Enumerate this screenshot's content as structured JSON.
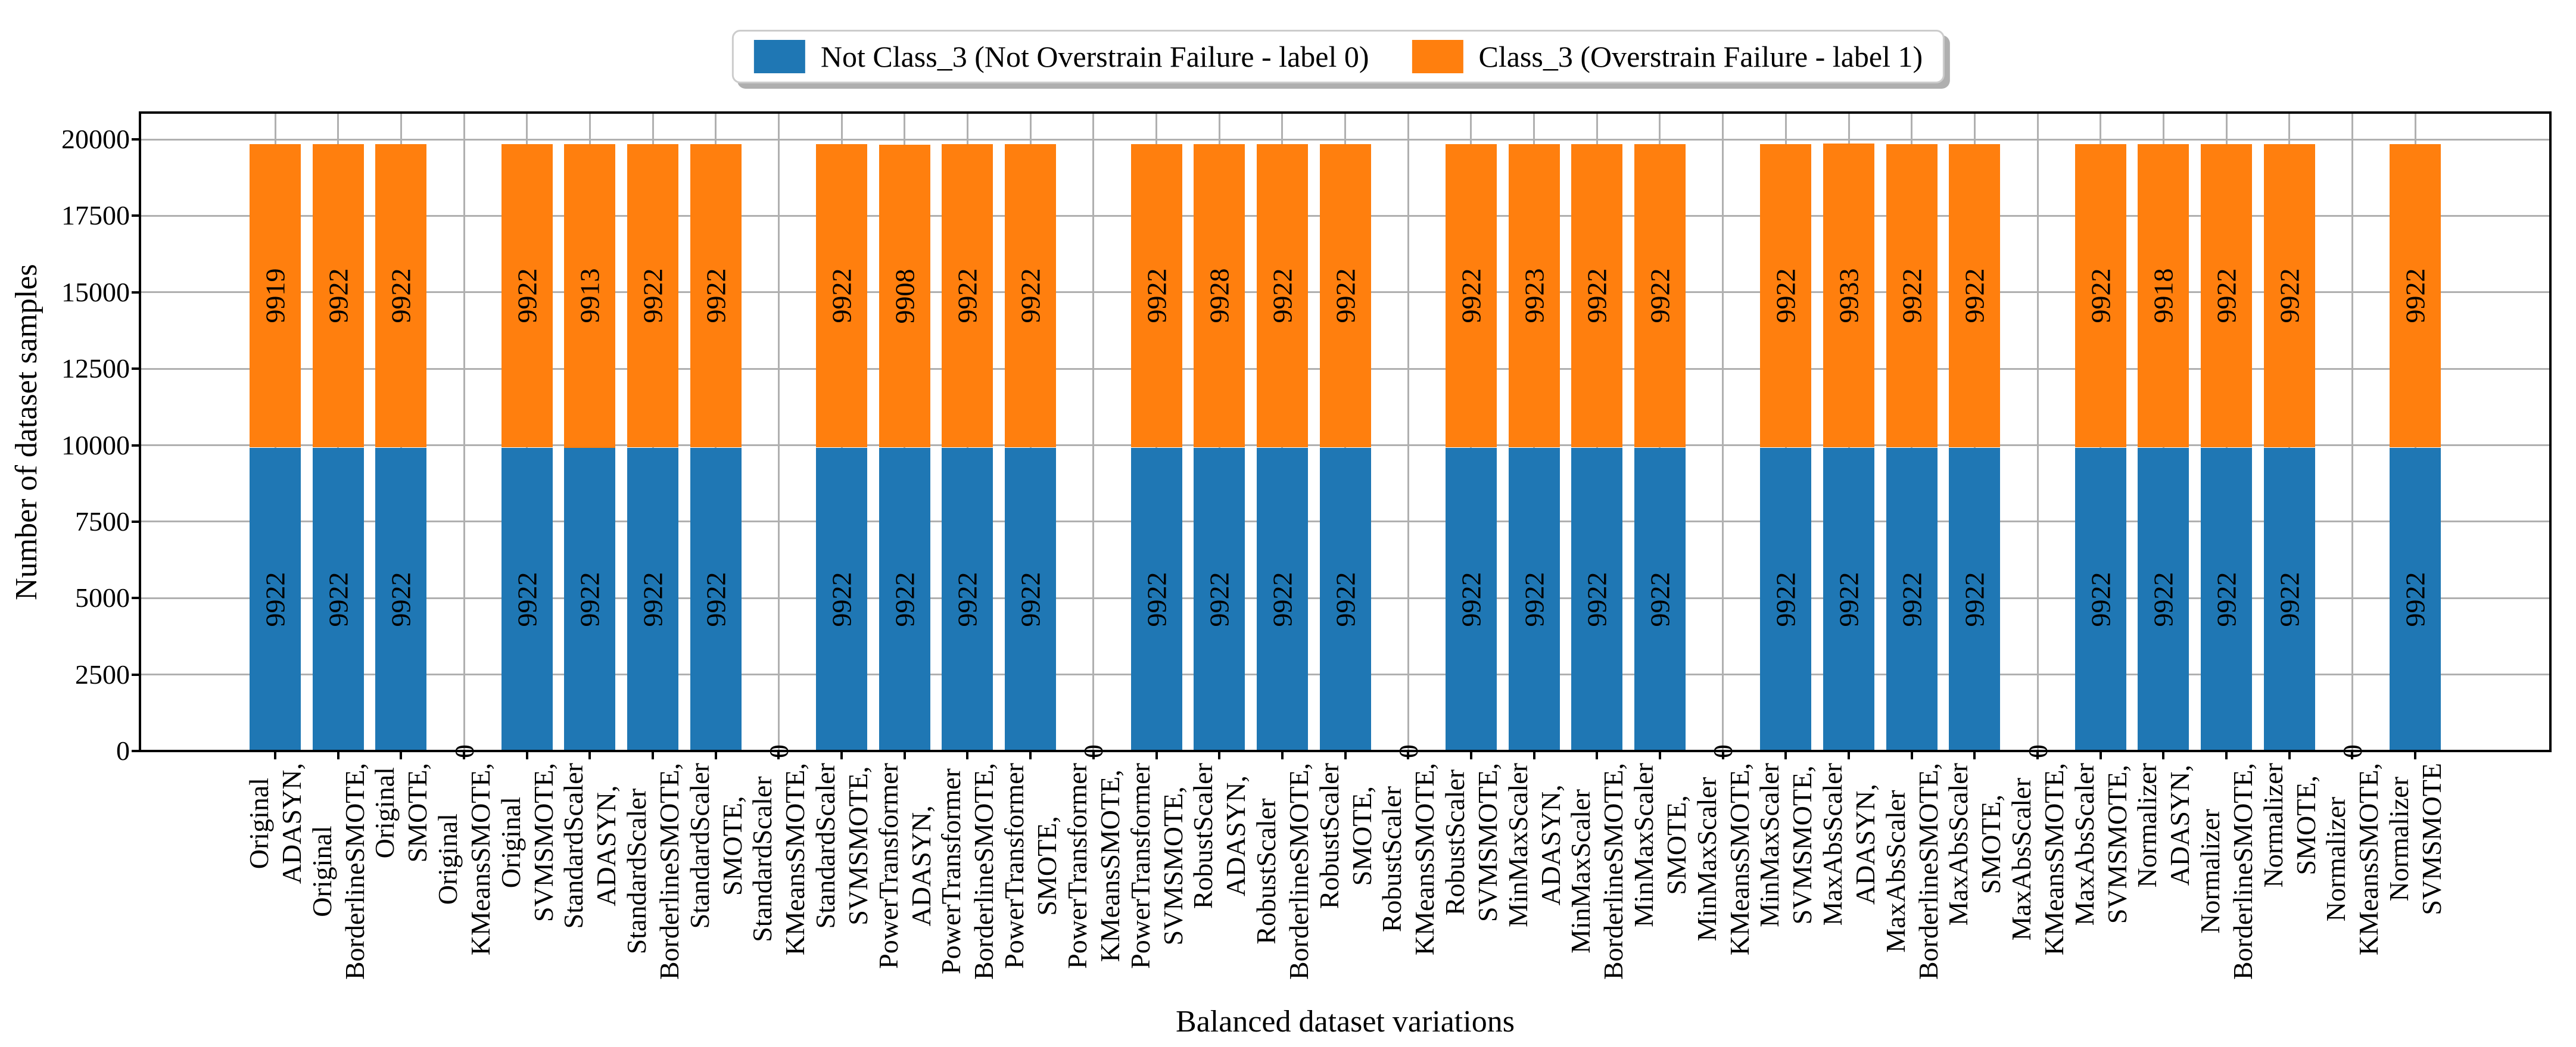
{
  "legend": {
    "items": [
      {
        "label": "Not Class_3 (Not Overstrain Failure - label 0)",
        "color": "#1f77b4"
      },
      {
        "label": "Class_3 (Overstrain Failure - label 1)",
        "color": "#ff7f0e"
      }
    ]
  },
  "axes": {
    "x_label": "Balanced dataset variations",
    "y_label": "Number of dataset samples",
    "y_ticks": [
      0,
      2500,
      5000,
      7500,
      10000,
      12500,
      15000,
      17500,
      20000
    ]
  },
  "chart_data": {
    "type": "bar",
    "stacked": true,
    "title": "",
    "xlabel": "Balanced dataset variations",
    "ylabel": "Number of dataset samples",
    "ylim": [
      0,
      20880
    ],
    "grid": true,
    "legend_position": "upper center, outside plot",
    "bar_value_labels": true,
    "zero_label": "0",
    "categories": [
      "Original\nADASYN,",
      "Original\nBorderlineSMOTE,",
      "Original\nSMOTE,",
      "Original\nKMeansSMOTE,",
      "Original\nSVMSMOTE,",
      "StandardScaler\nADASYN,",
      "StandardScaler\nBorderlineSMOTE,",
      "StandardScaler\nSMOTE,",
      "StandardScaler\nKMeansSMOTE,",
      "StandardScaler\nSVMSMOTE,",
      "PowerTransformer\nADASYN,",
      "PowerTransformer\nBorderlineSMOTE,",
      "PowerTransformer\nSMOTE,",
      "PowerTransformer\nKMeansSMOTE,",
      "PowerTransformer\nSVMSMOTE,",
      "RobustScaler\nADASYN,",
      "RobustScaler\nBorderlineSMOTE,",
      "RobustScaler\nSMOTE,",
      "RobustScaler\nKMeansSMOTE,",
      "RobustScaler\nSVMSMOTE,",
      "MinMaxScaler\nADASYN,",
      "MinMaxScaler\nBorderlineSMOTE,",
      "MinMaxScaler\nSMOTE,",
      "MinMaxScaler\nKMeansSMOTE,",
      "MinMaxScaler\nSVMSMOTE,",
      "MaxAbsScaler\nADASYN,",
      "MaxAbsScaler\nBorderlineSMOTE,",
      "MaxAbsScaler\nSMOTE,",
      "MaxAbsScaler\nKMeansSMOTE,",
      "MaxAbsScaler\nSVMSMOTE,",
      "Normalizer\nADASYN,",
      "Normalizer\nBorderlineSMOTE,",
      "Normalizer\nSMOTE,",
      "Normalizer\nKMeansSMOTE,",
      "Normalizer\nSVMSMOTE"
    ],
    "series": [
      {
        "name": "Not Class_3 (Not Overstrain Failure - label 0)",
        "color": "#1f77b4",
        "values": [
          9922,
          9922,
          9922,
          0,
          9922,
          9922,
          9922,
          9922,
          0,
          9922,
          9922,
          9922,
          9922,
          0,
          9922,
          9922,
          9922,
          9922,
          0,
          9922,
          9922,
          9922,
          9922,
          0,
          9922,
          9922,
          9922,
          9922,
          0,
          9922,
          9922,
          9922,
          9922,
          0,
          9922
        ]
      },
      {
        "name": "Class_3 (Overstrain Failure - label 1)",
        "color": "#ff7f0e",
        "values": [
          9919,
          9922,
          9922,
          0,
          9922,
          9913,
          9922,
          9922,
          0,
          9922,
          9908,
          9922,
          9922,
          0,
          9922,
          9928,
          9922,
          9922,
          0,
          9922,
          9923,
          9922,
          9922,
          0,
          9922,
          9933,
          9922,
          9922,
          0,
          9922,
          9918,
          9922,
          9922,
          0,
          9922
        ]
      }
    ]
  }
}
